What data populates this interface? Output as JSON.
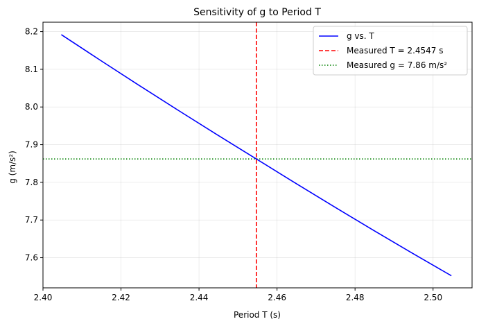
{
  "chart_data": {
    "type": "line",
    "title": "Sensitivity of g to Period T",
    "xlabel": "Period T (s)",
    "ylabel": "g (m/s²)",
    "xlim": [
      2.4,
      2.51
    ],
    "ylim": [
      7.52,
      8.225
    ],
    "xticks": [
      2.4,
      2.42,
      2.44,
      2.46,
      2.48,
      2.5
    ],
    "xtick_labels": [
      "2.40",
      "2.42",
      "2.44",
      "2.46",
      "2.48",
      "2.50"
    ],
    "yticks": [
      7.6,
      7.7,
      7.8,
      7.9,
      8.0,
      8.1,
      8.2
    ],
    "ytick_labels": [
      "7.6",
      "7.7",
      "7.8",
      "7.9",
      "8.0",
      "8.1",
      "8.2"
    ],
    "grid": true,
    "legend_position": "top-right",
    "series": [
      {
        "name": "g vs. T",
        "color": "#0000ff",
        "style": "solid",
        "x": [
          2.4047,
          2.4147,
          2.4247,
          2.4347,
          2.4447,
          2.4547,
          2.4647,
          2.4747,
          2.4847,
          2.4947,
          2.5047
        ],
        "y": [
          8.192,
          8.124,
          8.057,
          7.991,
          7.926,
          7.862,
          7.798,
          7.735,
          7.673,
          7.612,
          7.552
        ]
      }
    ],
    "reference_lines": [
      {
        "name": "Measured T = 2.4547 s",
        "orientation": "vertical",
        "value": 2.4547,
        "color": "#ff0000",
        "style": "dashed"
      },
      {
        "name": "Measured g = 7.86 m/s²",
        "orientation": "horizontal",
        "value": 7.862,
        "color": "#008000",
        "style": "dotted"
      }
    ]
  }
}
